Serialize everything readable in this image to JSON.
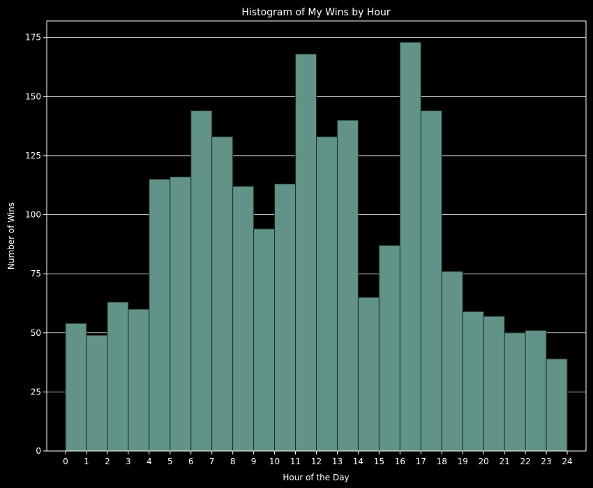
{
  "chart_data": {
    "type": "bar",
    "title": "Histogram of My Wins by Hour",
    "xlabel": "Hour of the Day",
    "ylabel": "Number of Wins",
    "bin_edges": [
      0,
      1,
      2,
      3,
      4,
      5,
      6,
      7,
      8,
      9,
      10,
      11,
      12,
      13,
      14,
      15,
      16,
      17,
      18,
      19,
      20,
      21,
      22,
      23,
      24
    ],
    "values": [
      54,
      49,
      63,
      60,
      115,
      116,
      144,
      133,
      112,
      94,
      113,
      168,
      133,
      140,
      65,
      87,
      173,
      144,
      76,
      59,
      57,
      50,
      51,
      39
    ],
    "x_ticks": [
      "0",
      "1",
      "2",
      "3",
      "4",
      "5",
      "6",
      "7",
      "8",
      "9",
      "10",
      "11",
      "12",
      "13",
      "14",
      "15",
      "16",
      "17",
      "18",
      "19",
      "20",
      "21",
      "22",
      "23",
      "24"
    ],
    "y_ticks": [
      "0",
      "25",
      "50",
      "75",
      "100",
      "125",
      "150",
      "175"
    ],
    "xlim": [
      -0.9,
      24.9
    ],
    "ylim": [
      0,
      182
    ],
    "grid": "horizontal",
    "bar_color": "#629388",
    "bar_edge_color": "#1e2e2a",
    "background_color": "#000000",
    "text_color": "#ffffff"
  }
}
